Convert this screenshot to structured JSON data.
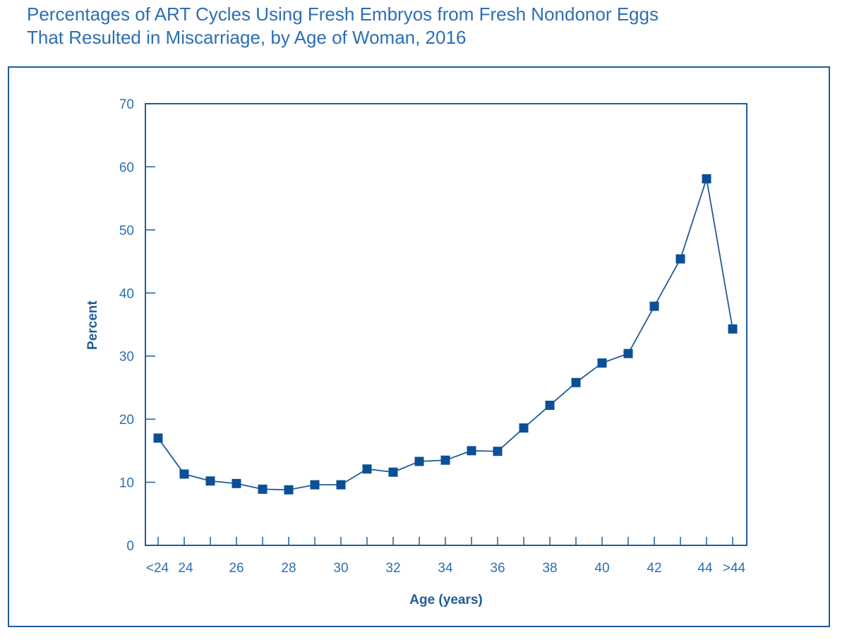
{
  "title": {
    "line1": "Percentages of ART Cycles Using Fresh Embryos from Fresh Nondonor Eggs",
    "line2": "That Resulted in Miscarriage, by Age of Woman, 2016"
  },
  "colors": {
    "title": "#2d6fb2",
    "axis": "#1f5c99",
    "series": "#1f5c99",
    "marker": "#0b4f96"
  },
  "chart_data": {
    "type": "line",
    "xlabel": "Age (years)",
    "ylabel": "Percent",
    "ylim": [
      0,
      70
    ],
    "yticks": [
      0,
      10,
      20,
      30,
      40,
      50,
      60,
      70
    ],
    "categories": [
      "<24",
      "24",
      "25",
      "26",
      "27",
      "28",
      "29",
      "30",
      "31",
      "32",
      "33",
      "34",
      "35",
      "36",
      "37",
      "38",
      "39",
      "40",
      "41",
      "42",
      "43",
      "44",
      ">44"
    ],
    "tick_labels": [
      "<24",
      "24",
      "",
      "26",
      "",
      "28",
      "",
      "30",
      "",
      "32",
      "",
      "34",
      "",
      "36",
      "",
      "38",
      "",
      "40",
      "",
      "42",
      "",
      "44",
      ">44"
    ],
    "values": [
      17.0,
      11.3,
      10.2,
      9.8,
      8.9,
      8.8,
      9.6,
      9.6,
      12.1,
      11.6,
      13.3,
      13.5,
      15.0,
      14.9,
      18.6,
      22.2,
      25.8,
      28.9,
      30.4,
      37.9,
      45.4,
      58.1,
      34.3
    ],
    "marker": "square",
    "grid": false,
    "legend": "none"
  }
}
